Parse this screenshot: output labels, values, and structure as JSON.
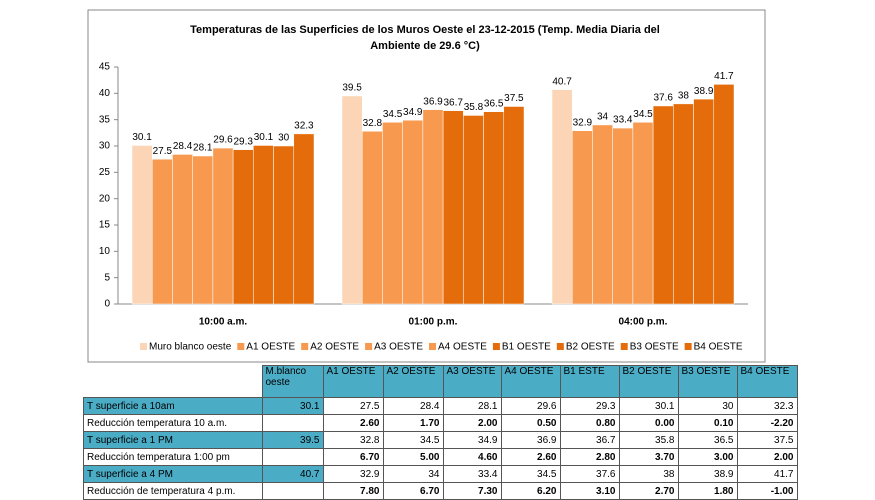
{
  "chart_data": {
    "type": "bar",
    "title": [
      "Temperaturas de las Superficies de los Muros Oeste el  23-12-2015  (Temp. Media Diaria del",
      "Ambiente  de 29.6 °C)"
    ],
    "categories": [
      "10:00 a.m.",
      "01:00 p.m.",
      "04:00 p.m."
    ],
    "series": [
      {
        "name": "Muro blanco oeste",
        "color": "#fbd5b5",
        "values": [
          30.1,
          39.5,
          40.7
        ]
      },
      {
        "name": "A1 OESTE",
        "color": "#f79a50",
        "values": [
          27.5,
          32.8,
          32.9
        ]
      },
      {
        "name": "A2 OESTE",
        "color": "#f79a50",
        "values": [
          28.4,
          34.5,
          34
        ]
      },
      {
        "name": "A3 OESTE",
        "color": "#f79a50",
        "values": [
          28.1,
          34.9,
          33.4
        ]
      },
      {
        "name": "A4 OESTE",
        "color": "#f79a50",
        "values": [
          29.6,
          36.9,
          34.5
        ]
      },
      {
        "name": "B1  OESTE",
        "color": "#e46c0a",
        "values": [
          29.3,
          36.7,
          37.6
        ]
      },
      {
        "name": "B2 OESTE",
        "color": "#e46c0a",
        "values": [
          30.1,
          35.8,
          38
        ]
      },
      {
        "name": "B3 OESTE",
        "color": "#e46c0a",
        "values": [
          30,
          36.5,
          38.9
        ]
      },
      {
        "name": "B4 OESTE",
        "color": "#e46c0a",
        "values": [
          32.3,
          37.5,
          41.7
        ]
      }
    ],
    "ylim": [
      0,
      45
    ],
    "yticks": [
      0,
      5,
      10,
      15,
      20,
      25,
      30,
      35,
      40,
      45
    ],
    "grid": false,
    "legend": "bottom"
  },
  "table": {
    "headers": [
      "M.blanco oeste",
      "A1 OESTE",
      "A2 OESTE",
      "A3 OESTE",
      "A4 OESTE",
      "B1  ESTE",
      "B2 OESTE",
      "B3 OESTE",
      "B4 OESTE"
    ],
    "rows": [
      [
        "T superficie a  10am",
        "30.1",
        "27.5",
        "28.4",
        "28.1",
        "29.6",
        "29.3",
        "30.1",
        "30",
        "32.3"
      ],
      [
        "Reducción temperatura 10 a.m.",
        null,
        "2.60",
        "1.70",
        "2.00",
        "0.50",
        "0.80",
        "0.00",
        "0.10",
        "-2.20"
      ],
      [
        "T superficie a  1 PM",
        "39.5",
        "32.8",
        "34.5",
        "34.9",
        "36.9",
        "36.7",
        "35.8",
        "36.5",
        "37.5"
      ],
      [
        "Reducción temperatura 1:00 pm",
        null,
        "6.70",
        "5.00",
        "4.60",
        "2.60",
        "2.80",
        "3.70",
        "3.00",
        "2.00"
      ],
      [
        "T superficie a  4 PM",
        "40.7",
        "32.9",
        "34",
        "33.4",
        "34.5",
        "37.6",
        "38",
        "38.9",
        "41.7"
      ],
      [
        "Reducción de temperatura 4 p.m.",
        null,
        "7.80",
        "6.70",
        "7.30",
        "6.20",
        "3.10",
        "2.70",
        "1.80",
        "-1.00"
      ]
    ]
  }
}
